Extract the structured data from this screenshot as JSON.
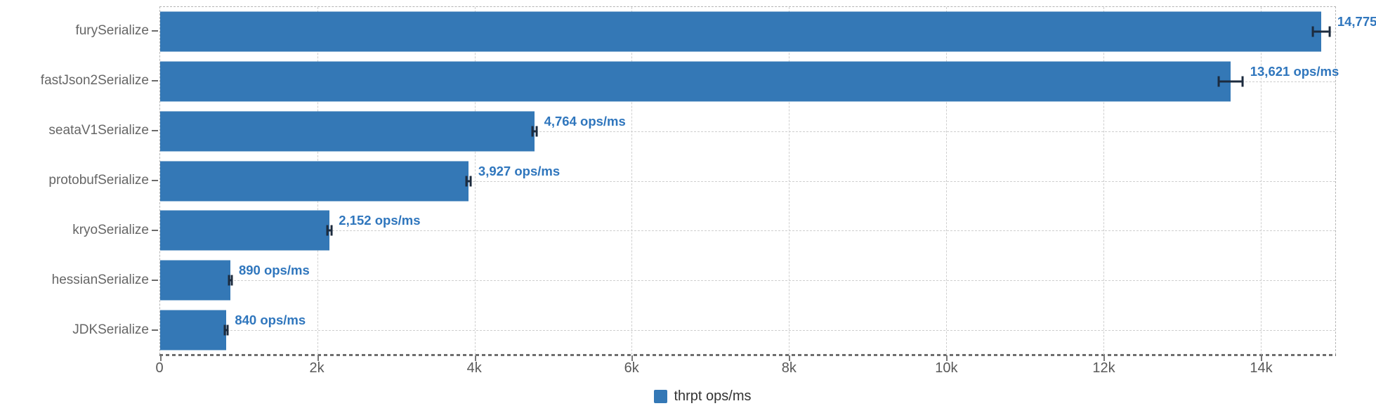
{
  "chart_data": {
    "type": "bar",
    "orientation": "horizontal",
    "title": "",
    "xlabel": "",
    "ylabel": "",
    "categories": [
      "furySerialize",
      "fastJson2Serialize",
      "seataV1Serialize",
      "protobufSerialize",
      "kryoSerialize",
      "hessianSerialize",
      "JDKSerialize"
    ],
    "series": [
      {
        "name": "thrpt ops/ms",
        "values": [
          14775,
          13621,
          4764,
          3927,
          2152,
          890,
          840
        ],
        "errors": [
          120,
          165,
          40,
          40,
          40,
          30,
          30
        ]
      }
    ],
    "value_labels": [
      "14,775",
      "13,621 ops/ms",
      "4,764 ops/ms",
      "3,927 ops/ms",
      "2,152 ops/ms",
      "890 ops/ms",
      "840 ops/ms"
    ],
    "unit": "ops/ms",
    "x_ticks": [
      {
        "label": "0",
        "value": 0
      },
      {
        "label": "2k",
        "value": 2000
      },
      {
        "label": "4k",
        "value": 4000
      },
      {
        "label": "6k",
        "value": 6000
      },
      {
        "label": "8k",
        "value": 8000
      },
      {
        "label": "10k",
        "value": 10000
      },
      {
        "label": "12k",
        "value": 12000
      },
      {
        "label": "14k",
        "value": 14000
      }
    ],
    "xlim": [
      0,
      14950
    ],
    "grid": "dashed",
    "legend_position": "bottom",
    "colors": {
      "bar": "#3478b6",
      "value_label": "#2f76bd",
      "error_bar": "#1c2b3e",
      "axis_text": "#666666",
      "grid_line": "#cfcfcf",
      "plot_border": "#b5b5b5",
      "axis_line": "#6e6e6e",
      "legend_text": "#333333"
    }
  },
  "legend": {
    "label": "thrpt ops/ms"
  }
}
